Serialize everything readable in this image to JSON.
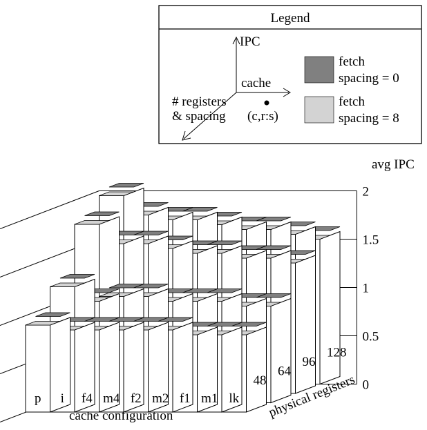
{
  "colors": {
    "fetch_spacing_0": "#808080",
    "fetch_spacing_8": "#d3d3d3",
    "bar_face": "#ffffff",
    "edge": "#000000"
  },
  "legend": {
    "title": "Legend",
    "axis_ipc": "IPC",
    "axis_cache": "cache",
    "axis_registers_line1": "# registers",
    "axis_registers_line2": "& spacing",
    "point_label": "(c,r:s)",
    "entries": [
      {
        "line1": "fetch",
        "line2": "spacing = 0",
        "color_key": "fetch_spacing_0"
      },
      {
        "line1": "fetch",
        "line2": "spacing = 8",
        "color_key": "fetch_spacing_8"
      }
    ]
  },
  "chart_data": {
    "type": "bar",
    "subtype": "3d-bar",
    "zlabel": "avg IPC",
    "zlim": [
      0,
      2
    ],
    "zticks": [
      "0",
      "0.5",
      "1",
      "1.5",
      "2"
    ],
    "xlabel": "cache configuration",
    "categories": [
      "p",
      "i",
      "f4",
      "m4",
      "f2",
      "m2",
      "f1",
      "m1",
      "lk"
    ],
    "ylabel": "physical registers",
    "depth_categories": [
      "48",
      "64",
      "96",
      "128"
    ],
    "legend_position": "top-right",
    "series": [
      {
        "name": "fetch spacing = 0",
        "values": [
          [
            0.95,
            0.9,
            0.9,
            0.9,
            0.9,
            0.9,
            0.85,
            0.85,
            0.85
          ],
          [
            1.25,
            1.1,
            1.15,
            1.15,
            1.1,
            1.1,
            1.1,
            1.05,
            1.05
          ],
          [
            1.8,
            1.6,
            1.6,
            1.55,
            1.5,
            1.5,
            1.45,
            1.45,
            1.4
          ],
          [
            2.0,
            1.8,
            1.75,
            1.75,
            1.7,
            1.65,
            1.65,
            1.6,
            1.55
          ]
        ]
      },
      {
        "name": "fetch spacing = 8",
        "values": [
          [
            0.9,
            0.85,
            0.85,
            0.85,
            0.85,
            0.85,
            0.8,
            0.8,
            0.8
          ],
          [
            1.2,
            1.05,
            1.1,
            1.1,
            1.05,
            1.05,
            1.05,
            1.0,
            1.0
          ],
          [
            1.75,
            1.55,
            1.55,
            1.5,
            1.45,
            1.45,
            1.4,
            1.4,
            1.35
          ],
          [
            1.95,
            1.75,
            1.7,
            1.7,
            1.65,
            1.6,
            1.6,
            1.55,
            1.5
          ]
        ]
      }
    ]
  }
}
